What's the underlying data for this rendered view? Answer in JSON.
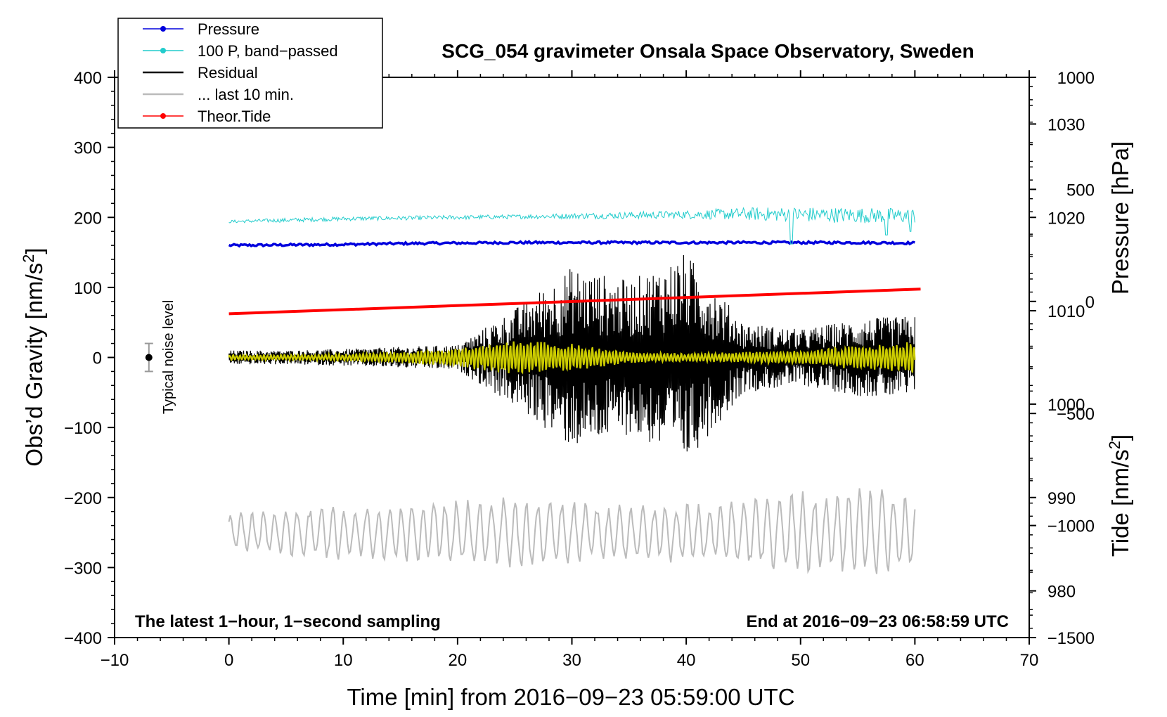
{
  "chart_data": {
    "type": "line",
    "title": "SCG_054 gravimeter Onsala Space Observatory, Sweden",
    "xlabel": "Time [min] from 2016−09−23 05:59:00 UTC",
    "ylabel_left": "Obs’d Gravity [nm/s²]",
    "ylabel_left_main": "Obs’d Gravity [nm/s",
    "ylabel_left_sup": "2",
    "ylabel_left_end": "]",
    "ylabel_right_pressure": "Pressure [hPa]",
    "ylabel_right_tide_main": "Tide [nm/s",
    "ylabel_right_tide_sup": "2",
    "ylabel_right_tide_end": "]",
    "xlim": [
      -10,
      70
    ],
    "ylim_left": [
      -400,
      400
    ],
    "pressure_axis_range": [
      975,
      1035
    ],
    "tide_axis_range": [
      -1500,
      1000
    ],
    "x_ticks": [
      "−10",
      "0",
      "10",
      "20",
      "30",
      "40",
      "50",
      "60",
      "70"
    ],
    "y_left_ticks": [
      "400",
      "300",
      "200",
      "100",
      "0",
      "−100",
      "−200",
      "−300",
      "−400"
    ],
    "y_pressure_ticks": [
      "1030",
      "1020",
      "1010",
      "1000",
      "990",
      "980"
    ],
    "y_tide_ticks": [
      "1000",
      "500",
      "0",
      "−500",
      "−1000",
      "−1500"
    ],
    "note_left": "The latest 1−hour, 1−second sampling",
    "note_right": "End at 2016−09−23 06:58:59 UTC",
    "noise_label": "Typical noise level",
    "noise_bar": {
      "x": -7,
      "center": 0,
      "half_range": 20
    },
    "legend": [
      {
        "label": "Pressure",
        "color": "#0000dd",
        "marker": true
      },
      {
        "label": "100 P, band−passed",
        "color": "#22cccc",
        "marker": true
      },
      {
        "label": "Residual",
        "color": "#000000",
        "marker": false
      },
      {
        "label": "... last 10 min.",
        "color": "#bbbbbb",
        "marker": false
      },
      {
        "label": "Theor.Tide",
        "color": "#ff0000",
        "marker": true
      }
    ],
    "series": [
      {
        "name": "Pressure",
        "axis": "pressure",
        "color": "#0000dd",
        "x_range": [
          0,
          60
        ],
        "values": [
          1017.0,
          1017.05,
          1017.1,
          1017.2,
          1017.25,
          1017.3,
          1017.3,
          1017.3,
          1017.3,
          1017.3,
          1017.3,
          1017.3,
          1017.25
        ]
      },
      {
        "name": "100 P, band−passed",
        "axis": "gravity",
        "color": "#22cccc",
        "x_range": [
          0,
          60
        ],
        "baseline": [
          194,
          196,
          198,
          199,
          200,
          201,
          202,
          203,
          204,
          205,
          204,
          203,
          202
        ],
        "envelope": [
          2,
          3,
          3,
          3,
          3,
          3,
          4,
          5,
          6,
          9,
          11,
          11,
          11
        ]
      },
      {
        "name": "Residual",
        "axis": "gravity",
        "color": "#000000",
        "x_range": [
          0,
          60
        ],
        "envelope": [
          10,
          10,
          12,
          15,
          18,
          70,
          130,
          110,
          150,
          50,
          40,
          55,
          60
        ]
      },
      {
        "name": "Residual (yellow)",
        "axis": "gravity",
        "color": "#cccc00",
        "x_range": [
          0,
          60
        ],
        "envelope": [
          4,
          4,
          5,
          8,
          14,
          26,
          20,
          8,
          6,
          8,
          10,
          18,
          24
        ]
      },
      {
        "name": "... last 10 min.",
        "axis": "gravity",
        "color": "#bbbbbb",
        "x_range": [
          0,
          60
        ],
        "baseline": -250,
        "envelope": [
          30,
          35,
          40,
          45,
          50,
          55,
          45,
          40,
          45,
          50,
          60,
          65,
          60
        ]
      },
      {
        "name": "Theor.Tide",
        "axis": "tide",
        "color": "#ff0000",
        "x_range": [
          0,
          60.5
        ],
        "start": -55,
        "end": 55
      }
    ]
  }
}
